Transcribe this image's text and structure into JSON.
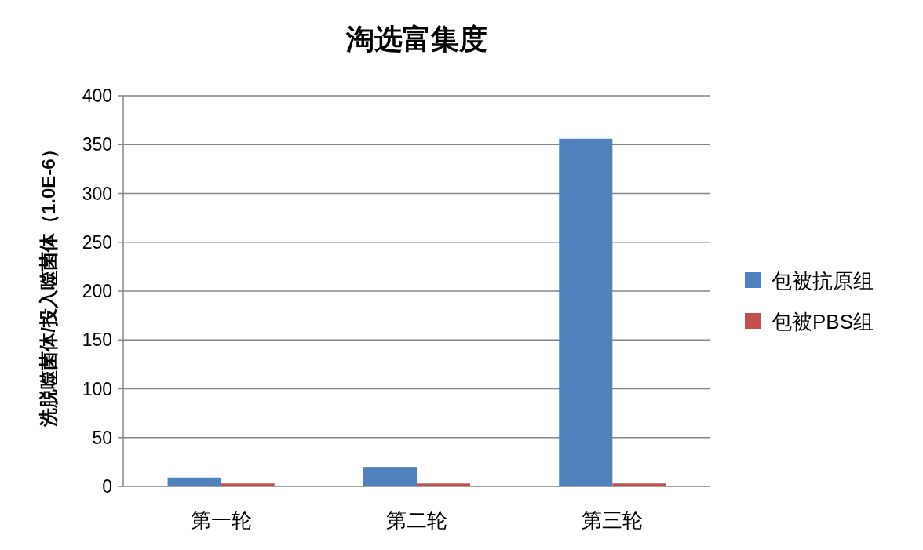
{
  "chart_data": {
    "type": "bar",
    "title": "淘选富集度",
    "ylabel": "洗脱噬菌体/投入噬菌体（1.0E-6）",
    "categories": [
      "第一轮",
      "第二轮",
      "第三轮"
    ],
    "series": [
      {
        "name": "包被抗原组",
        "color": "#4f81bd",
        "values": [
          9,
          20,
          356
        ]
      },
      {
        "name": "包被PBS组",
        "color": "#c0504d",
        "values": [
          3,
          3,
          3
        ]
      }
    ],
    "ylim": [
      0,
      400
    ],
    "yticks": [
      0,
      50,
      100,
      150,
      200,
      250,
      300,
      350,
      400
    ],
    "grid": "y",
    "legend": "right"
  }
}
